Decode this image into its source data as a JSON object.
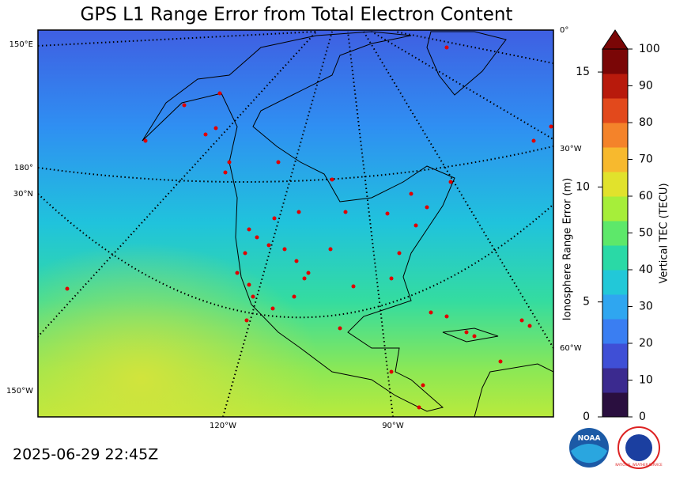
{
  "title": "GPS L1 Range Error from Total Electron Content",
  "timestamp": "2025-06-29 22:45Z",
  "map": {
    "graticule_labels": [
      "150°E",
      "180°",
      "30°N",
      "150°W",
      "120°W",
      "90°W",
      "0°",
      "30°W",
      "60°W"
    ]
  },
  "colorbar": {
    "colors": [
      "#2a0f3f",
      "#3b2a8f",
      "#3f4fd6",
      "#3a7ef2",
      "#2fa6f0",
      "#22c8d8",
      "#2ad9a6",
      "#5de86a",
      "#a6ee3a",
      "#e1e22c",
      "#f7b92e",
      "#f4832a",
      "#e2491c",
      "#b81a0c",
      "#7a0606"
    ],
    "tec": {
      "label": "Vertical TEC (TECU)",
      "lim": [
        0,
        100
      ],
      "ticks": [
        0,
        10,
        20,
        30,
        40,
        50,
        60,
        70,
        80,
        90,
        100
      ]
    },
    "range_error": {
      "label": "Ionosphere Range Error (m)",
      "lim": [
        0,
        16
      ],
      "ticks": [
        0,
        5,
        10,
        15
      ]
    }
  },
  "logos": {
    "noaa": "NOAA",
    "nws": "NATIONAL WEATHER SERVICE"
  }
}
